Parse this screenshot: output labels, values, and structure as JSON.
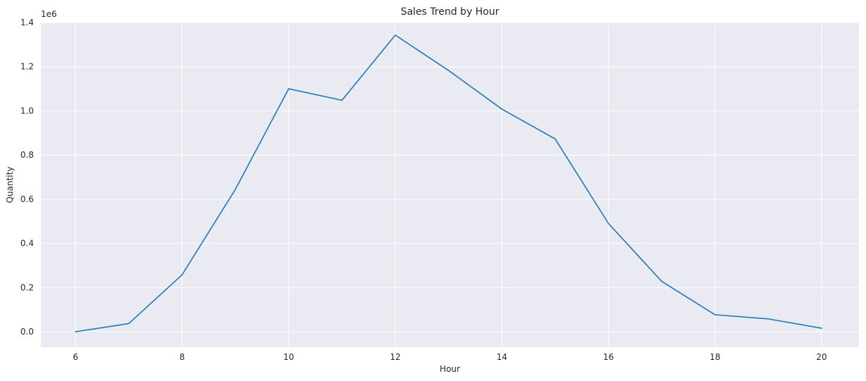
{
  "chart_data": {
    "type": "line",
    "title": "Sales Trend by Hour",
    "xlabel": "Hour",
    "ylabel": "Quantity",
    "y_offset_label": "1e6",
    "xlim": [
      5.35,
      20.7
    ],
    "ylim": [
      -0.07,
      1.4
    ],
    "x_ticks": [
      6,
      8,
      10,
      12,
      14,
      16,
      18,
      20
    ],
    "x_tick_labels": [
      "6",
      "8",
      "10",
      "12",
      "14",
      "16",
      "18",
      "20"
    ],
    "y_ticks": [
      0.0,
      0.2,
      0.4,
      0.6,
      0.8,
      1.0,
      1.2,
      1.4
    ],
    "y_tick_labels": [
      "0.0",
      "0.2",
      "0.4",
      "0.6",
      "0.8",
      "1.0",
      "1.2",
      "1.4"
    ],
    "grid": true,
    "colors": {
      "line": "#1f77b4",
      "background": "#eaeaf2",
      "grid": "#ffffff"
    },
    "series": [
      {
        "x": [
          6,
          7,
          8,
          9,
          10,
          11,
          12,
          13,
          14,
          15,
          16,
          17,
          18,
          19,
          20
        ],
        "values": [
          0.0,
          0.037,
          0.258,
          0.645,
          1.1,
          1.048,
          1.343,
          1.183,
          1.008,
          0.873,
          0.49,
          0.228,
          0.077,
          0.058,
          0.016
        ]
      }
    ]
  }
}
